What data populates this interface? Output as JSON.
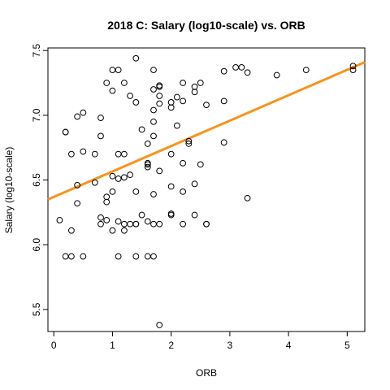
{
  "chart_data": {
    "type": "scatter",
    "title": "2018 C: Salary (log10-scale) vs. ORB",
    "xlabel": "ORB",
    "ylabel": "Salary (log10-scale)",
    "xlim": [
      -0.1,
      5.3
    ],
    "ylim": [
      5.33,
      7.52
    ],
    "x_ticks": [
      0,
      1,
      2,
      3,
      4,
      5
    ],
    "y_ticks": [
      5.5,
      6.0,
      6.5,
      7.0,
      7.5
    ],
    "x_tick_labels": [
      "0",
      "1",
      "2",
      "3",
      "4",
      "5"
    ],
    "y_tick_labels": [
      "5.5",
      "6.0",
      "6.5",
      "7.0",
      "7.5"
    ],
    "grid": false,
    "fit_line": {
      "color": "#f7941d",
      "from": [
        -0.1,
        6.35
      ],
      "to": [
        5.3,
        7.41
      ]
    },
    "points": [
      [
        0.1,
        6.19
      ],
      [
        0.2,
        6.87
      ],
      [
        0.2,
        6.87
      ],
      [
        0.2,
        5.91
      ],
      [
        0.3,
        5.91
      ],
      [
        0.3,
        6.7
      ],
      [
        0.3,
        6.11
      ],
      [
        0.4,
        6.99
      ],
      [
        0.4,
        6.46
      ],
      [
        0.4,
        6.32
      ],
      [
        0.5,
        7.02
      ],
      [
        0.5,
        6.72
      ],
      [
        0.5,
        5.91
      ],
      [
        0.7,
        6.7
      ],
      [
        0.7,
        6.48
      ],
      [
        0.8,
        6.98
      ],
      [
        0.8,
        6.84
      ],
      [
        0.8,
        6.21
      ],
      [
        0.8,
        6.16
      ],
      [
        0.9,
        7.25
      ],
      [
        0.9,
        6.37
      ],
      [
        0.9,
        6.33
      ],
      [
        0.9,
        6.19
      ],
      [
        1.0,
        7.35
      ],
      [
        1.0,
        7.19
      ],
      [
        1.0,
        6.53
      ],
      [
        1.0,
        6.41
      ],
      [
        1.0,
        6.11
      ],
      [
        1.1,
        7.35
      ],
      [
        1.1,
        6.7
      ],
      [
        1.1,
        6.51
      ],
      [
        1.1,
        6.18
      ],
      [
        1.1,
        5.91
      ],
      [
        1.2,
        7.25
      ],
      [
        1.2,
        6.7
      ],
      [
        1.2,
        6.52
      ],
      [
        1.2,
        6.16
      ],
      [
        1.2,
        6.11
      ],
      [
        1.3,
        7.15
      ],
      [
        1.3,
        6.54
      ],
      [
        1.3,
        6.16
      ],
      [
        1.4,
        7.44
      ],
      [
        1.4,
        7.1
      ],
      [
        1.4,
        6.41
      ],
      [
        1.4,
        6.16
      ],
      [
        1.4,
        6.16
      ],
      [
        1.4,
        5.91
      ],
      [
        1.5,
        6.89
      ],
      [
        1.5,
        6.23
      ],
      [
        1.6,
        6.78
      ],
      [
        1.6,
        6.63
      ],
      [
        1.6,
        6.62
      ],
      [
        1.6,
        6.6
      ],
      [
        1.6,
        6.18
      ],
      [
        1.6,
        5.91
      ],
      [
        1.7,
        7.35
      ],
      [
        1.7,
        7.2
      ],
      [
        1.7,
        7.04
      ],
      [
        1.7,
        6.95
      ],
      [
        1.7,
        6.84
      ],
      [
        1.7,
        6.39
      ],
      [
        1.7,
        6.16
      ],
      [
        1.7,
        5.91
      ],
      [
        1.8,
        7.23
      ],
      [
        1.8,
        7.22
      ],
      [
        1.8,
        7.15
      ],
      [
        1.8,
        7.09
      ],
      [
        1.8,
        6.57
      ],
      [
        1.8,
        6.16
      ],
      [
        1.8,
        5.38
      ],
      [
        2.0,
        7.1
      ],
      [
        2.0,
        7.06
      ],
      [
        2.0,
        6.7
      ],
      [
        2.0,
        6.45
      ],
      [
        2.0,
        6.24
      ],
      [
        2.0,
        6.23
      ],
      [
        2.1,
        7.14
      ],
      [
        2.1,
        6.92
      ],
      [
        2.2,
        7.25
      ],
      [
        2.2,
        7.11
      ],
      [
        2.2,
        6.63
      ],
      [
        2.2,
        6.41
      ],
      [
        2.2,
        6.16
      ],
      [
        2.3,
        6.8
      ],
      [
        2.3,
        6.78
      ],
      [
        2.4,
        7.22
      ],
      [
        2.4,
        7.18
      ],
      [
        2.4,
        6.47
      ],
      [
        2.4,
        6.23
      ],
      [
        2.5,
        7.25
      ],
      [
        2.5,
        6.62
      ],
      [
        2.6,
        7.08
      ],
      [
        2.6,
        6.16
      ],
      [
        2.6,
        6.16
      ],
      [
        2.9,
        7.34
      ],
      [
        2.9,
        7.11
      ],
      [
        2.9,
        6.79
      ],
      [
        3.1,
        7.37
      ],
      [
        3.2,
        7.37
      ],
      [
        3.3,
        7.33
      ],
      [
        3.3,
        6.36
      ],
      [
        3.8,
        7.31
      ],
      [
        4.3,
        7.35
      ],
      [
        5.1,
        7.38
      ],
      [
        5.1,
        7.35
      ]
    ]
  }
}
